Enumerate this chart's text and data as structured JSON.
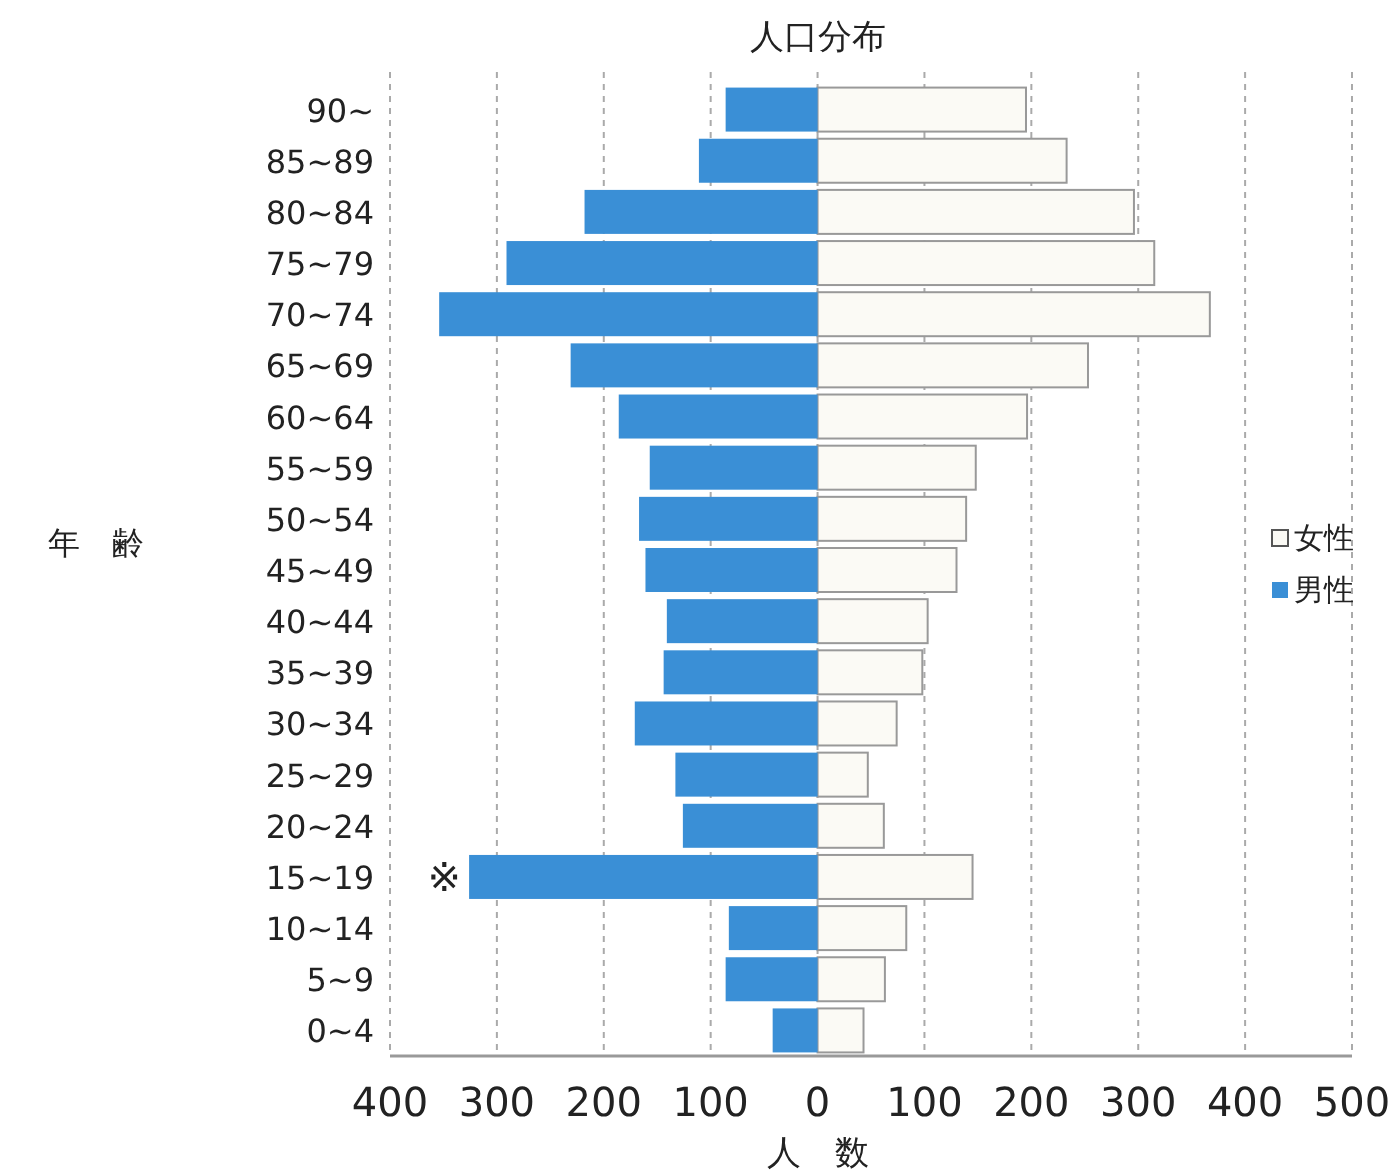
{
  "chart_data": {
    "type": "bar",
    "orientation": "horizontal",
    "stacked": true,
    "title": "人口分布",
    "xlabel": "人　数",
    "ylabel": "年　齢",
    "categories": [
      "90~",
      "85~89",
      "80~84",
      "75~79",
      "70~74",
      "65~69",
      "60~64",
      "55~59",
      "50~54",
      "45~49",
      "40~44",
      "35~39",
      "30~34",
      "25~29",
      "20~24",
      "15~19",
      "10~14",
      "5~9",
      "0~4"
    ],
    "series": [
      {
        "name": "女性",
        "color": "#fbfaf5",
        "values": [
          195,
          233,
          296,
          315,
          367,
          253,
          196,
          148,
          139,
          130,
          103,
          98,
          74,
          47,
          62,
          145,
          83,
          63,
          43
        ]
      },
      {
        "name": "男性",
        "color": "#3a8fd6",
        "values": [
          -86,
          -111,
          -218,
          -291,
          -354,
          -231,
          -186,
          -157,
          -167,
          -161,
          -141,
          -144,
          -171,
          -133,
          -126,
          -326,
          -83,
          -86,
          -42
        ]
      }
    ],
    "xlim": [
      -400,
      500
    ],
    "xticks": [
      {
        "value": -400,
        "label": "400"
      },
      {
        "value": -300,
        "label": "300"
      },
      {
        "value": -200,
        "label": "200"
      },
      {
        "value": -100,
        "label": "100"
      },
      0,
      100,
      200,
      300,
      400,
      500
    ],
    "grid": "x",
    "legend": "right",
    "annotations": [
      {
        "text": "※",
        "x": -326,
        "y": "15~19"
      }
    ]
  }
}
